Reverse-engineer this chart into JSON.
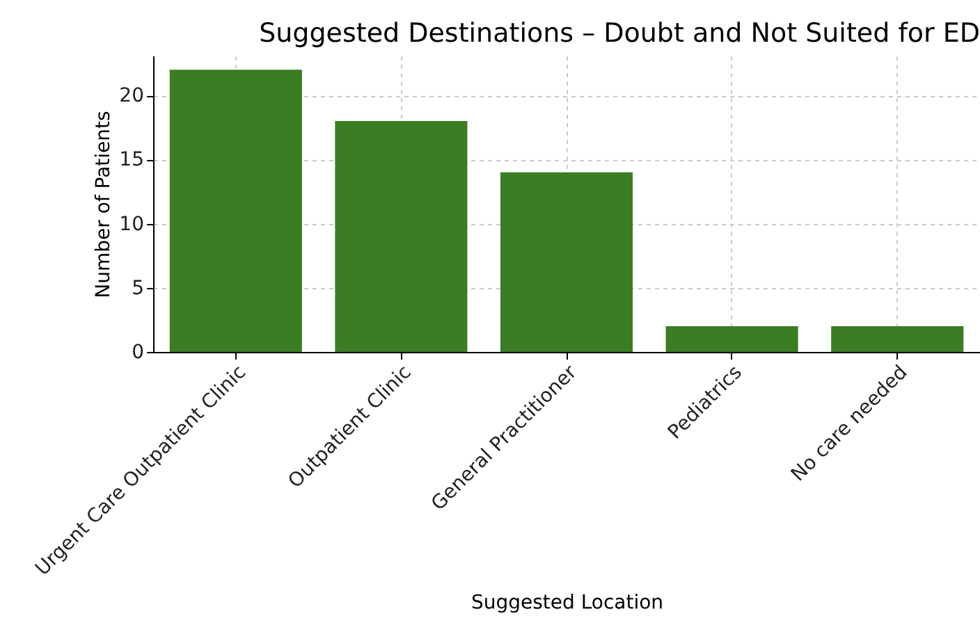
{
  "chart_data": {
    "type": "bar",
    "title": "Suggested Destinations – Doubt and Not Suited for ED",
    "xlabel": "Suggested Location",
    "ylabel": "Number of Patients",
    "categories": [
      "Urgent Care Outpatient Clinic",
      "Outpatient Clinic",
      "General Practitioner",
      "Pediatrics",
      "No care needed"
    ],
    "values": [
      22,
      18,
      14,
      2,
      2
    ],
    "color": "#3a7d22",
    "ylim": [
      0,
      23.1
    ],
    "yticks": [
      0,
      5,
      10,
      15,
      20
    ],
    "grid": true
  }
}
